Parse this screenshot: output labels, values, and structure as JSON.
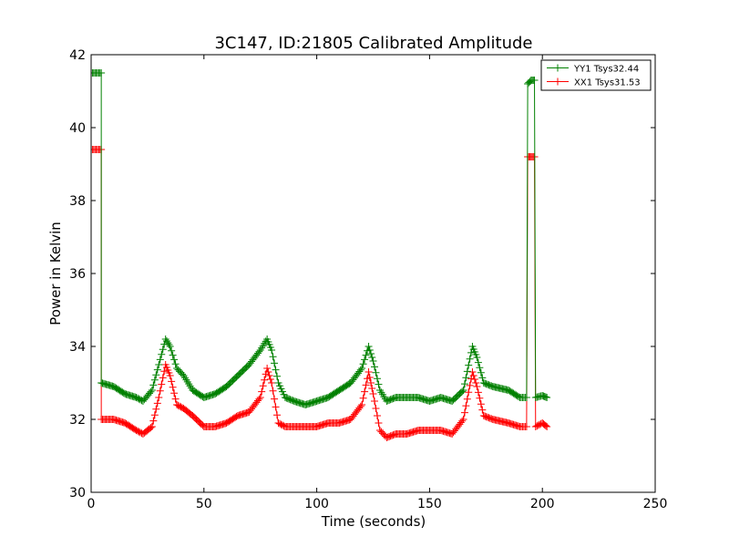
{
  "chart_data": {
    "type": "line",
    "title": "3C147, ID:21805 Calibrated Amplitude",
    "xlabel": "Time (seconds)",
    "ylabel": "Power in Kelvin",
    "xlim": [
      0,
      250
    ],
    "ylim": [
      30,
      42
    ],
    "xticks": [
      0,
      50,
      100,
      150,
      200,
      250
    ],
    "yticks": [
      30,
      32,
      34,
      36,
      38,
      40,
      42
    ],
    "grid": false,
    "legend_position": "top-right",
    "marker": "+",
    "series": [
      {
        "name": "YY1 Tsys32.44",
        "color": "#008000",
        "x": [
          0,
          4.5,
          4.5,
          10,
          15,
          20,
          23,
          27,
          30,
          33,
          35,
          38,
          41,
          45,
          50,
          55,
          60,
          65,
          70,
          75,
          78,
          80,
          83,
          86,
          90,
          95,
          100,
          105,
          110,
          115,
          120,
          123,
          125,
          128,
          131,
          135,
          140,
          145,
          150,
          155,
          160,
          165,
          169,
          171,
          174,
          178,
          185,
          190,
          193,
          193.5,
          195,
          196,
          196.5,
          197,
          200,
          202
        ],
        "y": [
          41.5,
          41.5,
          33.0,
          32.9,
          32.7,
          32.6,
          32.5,
          32.8,
          33.5,
          34.2,
          34.0,
          33.4,
          33.2,
          32.8,
          32.6,
          32.7,
          32.9,
          33.2,
          33.5,
          33.9,
          34.2,
          33.9,
          33.0,
          32.6,
          32.5,
          32.4,
          32.5,
          32.6,
          32.8,
          33.0,
          33.4,
          34.0,
          33.6,
          32.8,
          32.5,
          32.6,
          32.6,
          32.6,
          32.5,
          32.6,
          32.5,
          32.8,
          34.0,
          33.7,
          33.0,
          32.9,
          32.8,
          32.6,
          32.6,
          41.2,
          41.3,
          41.3,
          41.3,
          32.6,
          32.65,
          32.6
        ]
      },
      {
        "name": "XX1 Tsys31.53",
        "color": "#ff0000",
        "x": [
          0,
          4.5,
          4.5,
          10,
          15,
          20,
          23,
          27,
          30,
          33,
          35,
          38,
          41,
          45,
          50,
          55,
          60,
          65,
          70,
          75,
          78,
          80,
          83,
          86,
          90,
          95,
          100,
          105,
          110,
          115,
          120,
          123,
          125,
          128,
          131,
          135,
          140,
          145,
          150,
          155,
          160,
          165,
          169,
          171,
          174,
          178,
          185,
          190,
          193,
          193.5,
          195,
          196,
          196.5,
          197,
          200,
          202
        ],
        "y": [
          39.4,
          39.4,
          32.0,
          32.0,
          31.9,
          31.7,
          31.6,
          31.8,
          32.6,
          33.5,
          33.2,
          32.4,
          32.3,
          32.1,
          31.8,
          31.8,
          31.9,
          32.1,
          32.2,
          32.6,
          33.4,
          33.0,
          31.9,
          31.8,
          31.8,
          31.8,
          31.8,
          31.9,
          31.9,
          32.0,
          32.4,
          33.3,
          32.7,
          31.7,
          31.5,
          31.6,
          31.6,
          31.7,
          31.7,
          31.7,
          31.6,
          32.0,
          33.3,
          32.9,
          32.1,
          32.0,
          31.9,
          31.8,
          31.8,
          39.2,
          39.2,
          39.2,
          39.2,
          31.8,
          31.9,
          31.8
        ]
      }
    ]
  }
}
